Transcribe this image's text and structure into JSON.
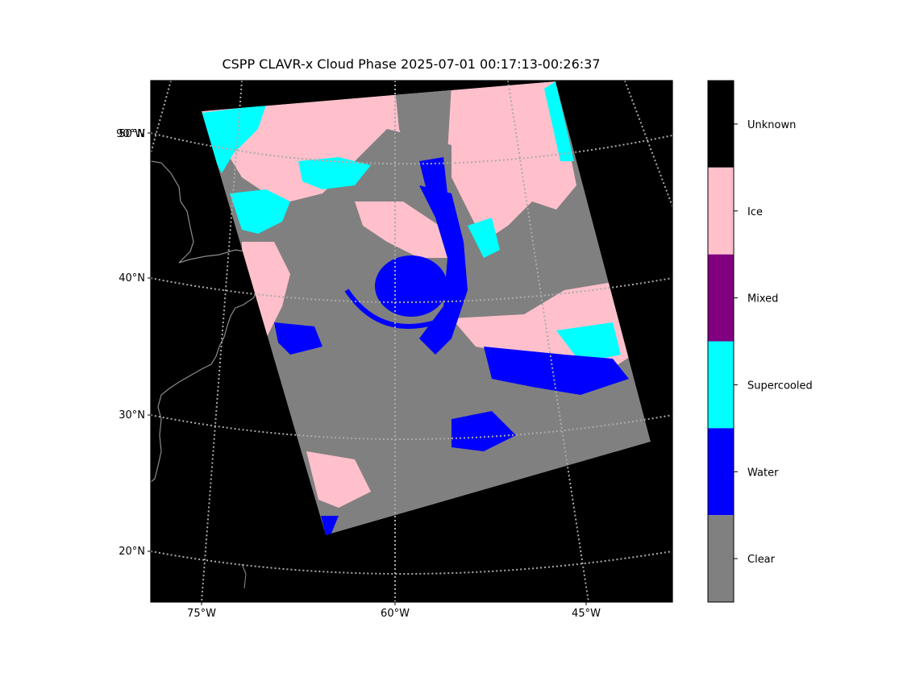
{
  "title": "CSPP CLAVR-x Cloud Phase 2025-07-01 00:17:13-00:26:37",
  "map": {
    "background_color": "#000000",
    "coastline_color": "#8c8c8c",
    "gridline_color": "#aaaaaa",
    "gridline_style": "dotted",
    "lat_labels": [
      "50°N",
      "40°N",
      "30°N",
      "20°N"
    ],
    "lon_labels": [
      "75°W",
      "60°W",
      "45°W"
    ],
    "overlapping_left_label": "90°W"
  },
  "legend": {
    "classes": [
      {
        "label": "Unknown",
        "color": "#000000"
      },
      {
        "label": "Ice",
        "color": "#ffc0cb"
      },
      {
        "label": "Mixed",
        "color": "#800080"
      },
      {
        "label": "Supercooled",
        "color": "#00ffff"
      },
      {
        "label": "Water",
        "color": "#0000ff"
      },
      {
        "label": "Clear",
        "color": "#808080"
      }
    ]
  }
}
